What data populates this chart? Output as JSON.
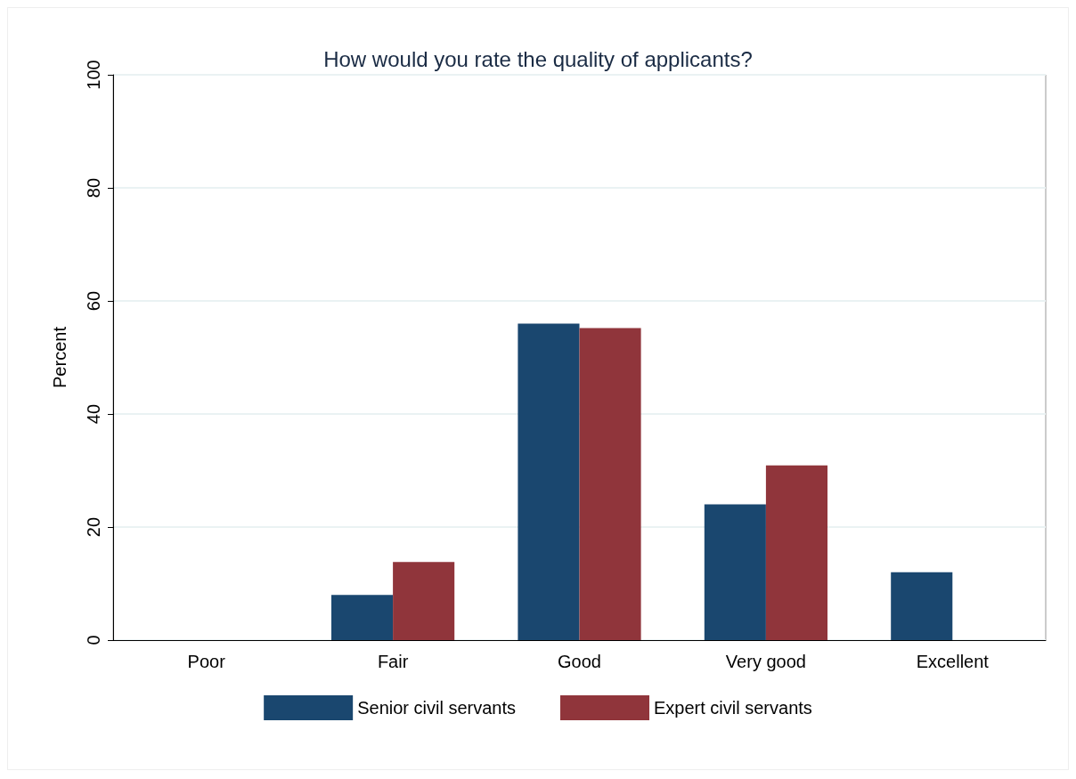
{
  "chart_data": {
    "type": "bar",
    "title": "How would you rate the quality of applicants?",
    "ylabel": "Percent",
    "categories": [
      "Poor",
      "Fair",
      "Good",
      "Very good",
      "Excellent"
    ],
    "series": [
      {
        "name": "Senior civil servants",
        "color": "#1a476f",
        "values": [
          0,
          8,
          56,
          24,
          12
        ]
      },
      {
        "name": "Expert civil servants",
        "color": "#90353b",
        "values": [
          0,
          13.8,
          55.2,
          30.9,
          0
        ]
      }
    ],
    "ylim": [
      0,
      100
    ],
    "yticks": [
      0,
      20,
      40,
      60,
      80,
      100
    ],
    "grid": "y",
    "legend": "bottom"
  }
}
